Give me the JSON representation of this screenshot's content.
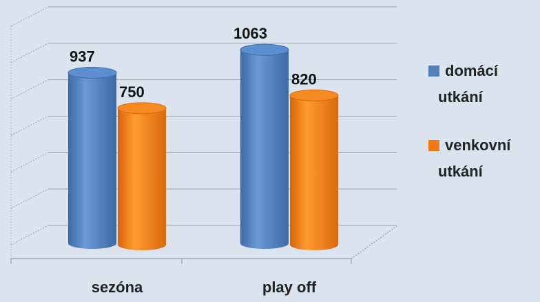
{
  "chart_data": {
    "type": "bar",
    "categories": [
      "sezóna",
      "play off"
    ],
    "series": [
      {
        "name": "domácí utkání",
        "legend_lines": [
          "domácí",
          "utkání"
        ],
        "values": [
          937,
          1063
        ],
        "color": "#4f81bd"
      },
      {
        "name": "venkovní utkání",
        "legend_lines": [
          "venkovní",
          "utkání"
        ],
        "values": [
          750,
          820
        ],
        "color": "#f07b10"
      }
    ],
    "ylim": [
      0,
      1200
    ],
    "grid": true,
    "legend_position": "right",
    "style": "3d-cylinder"
  }
}
